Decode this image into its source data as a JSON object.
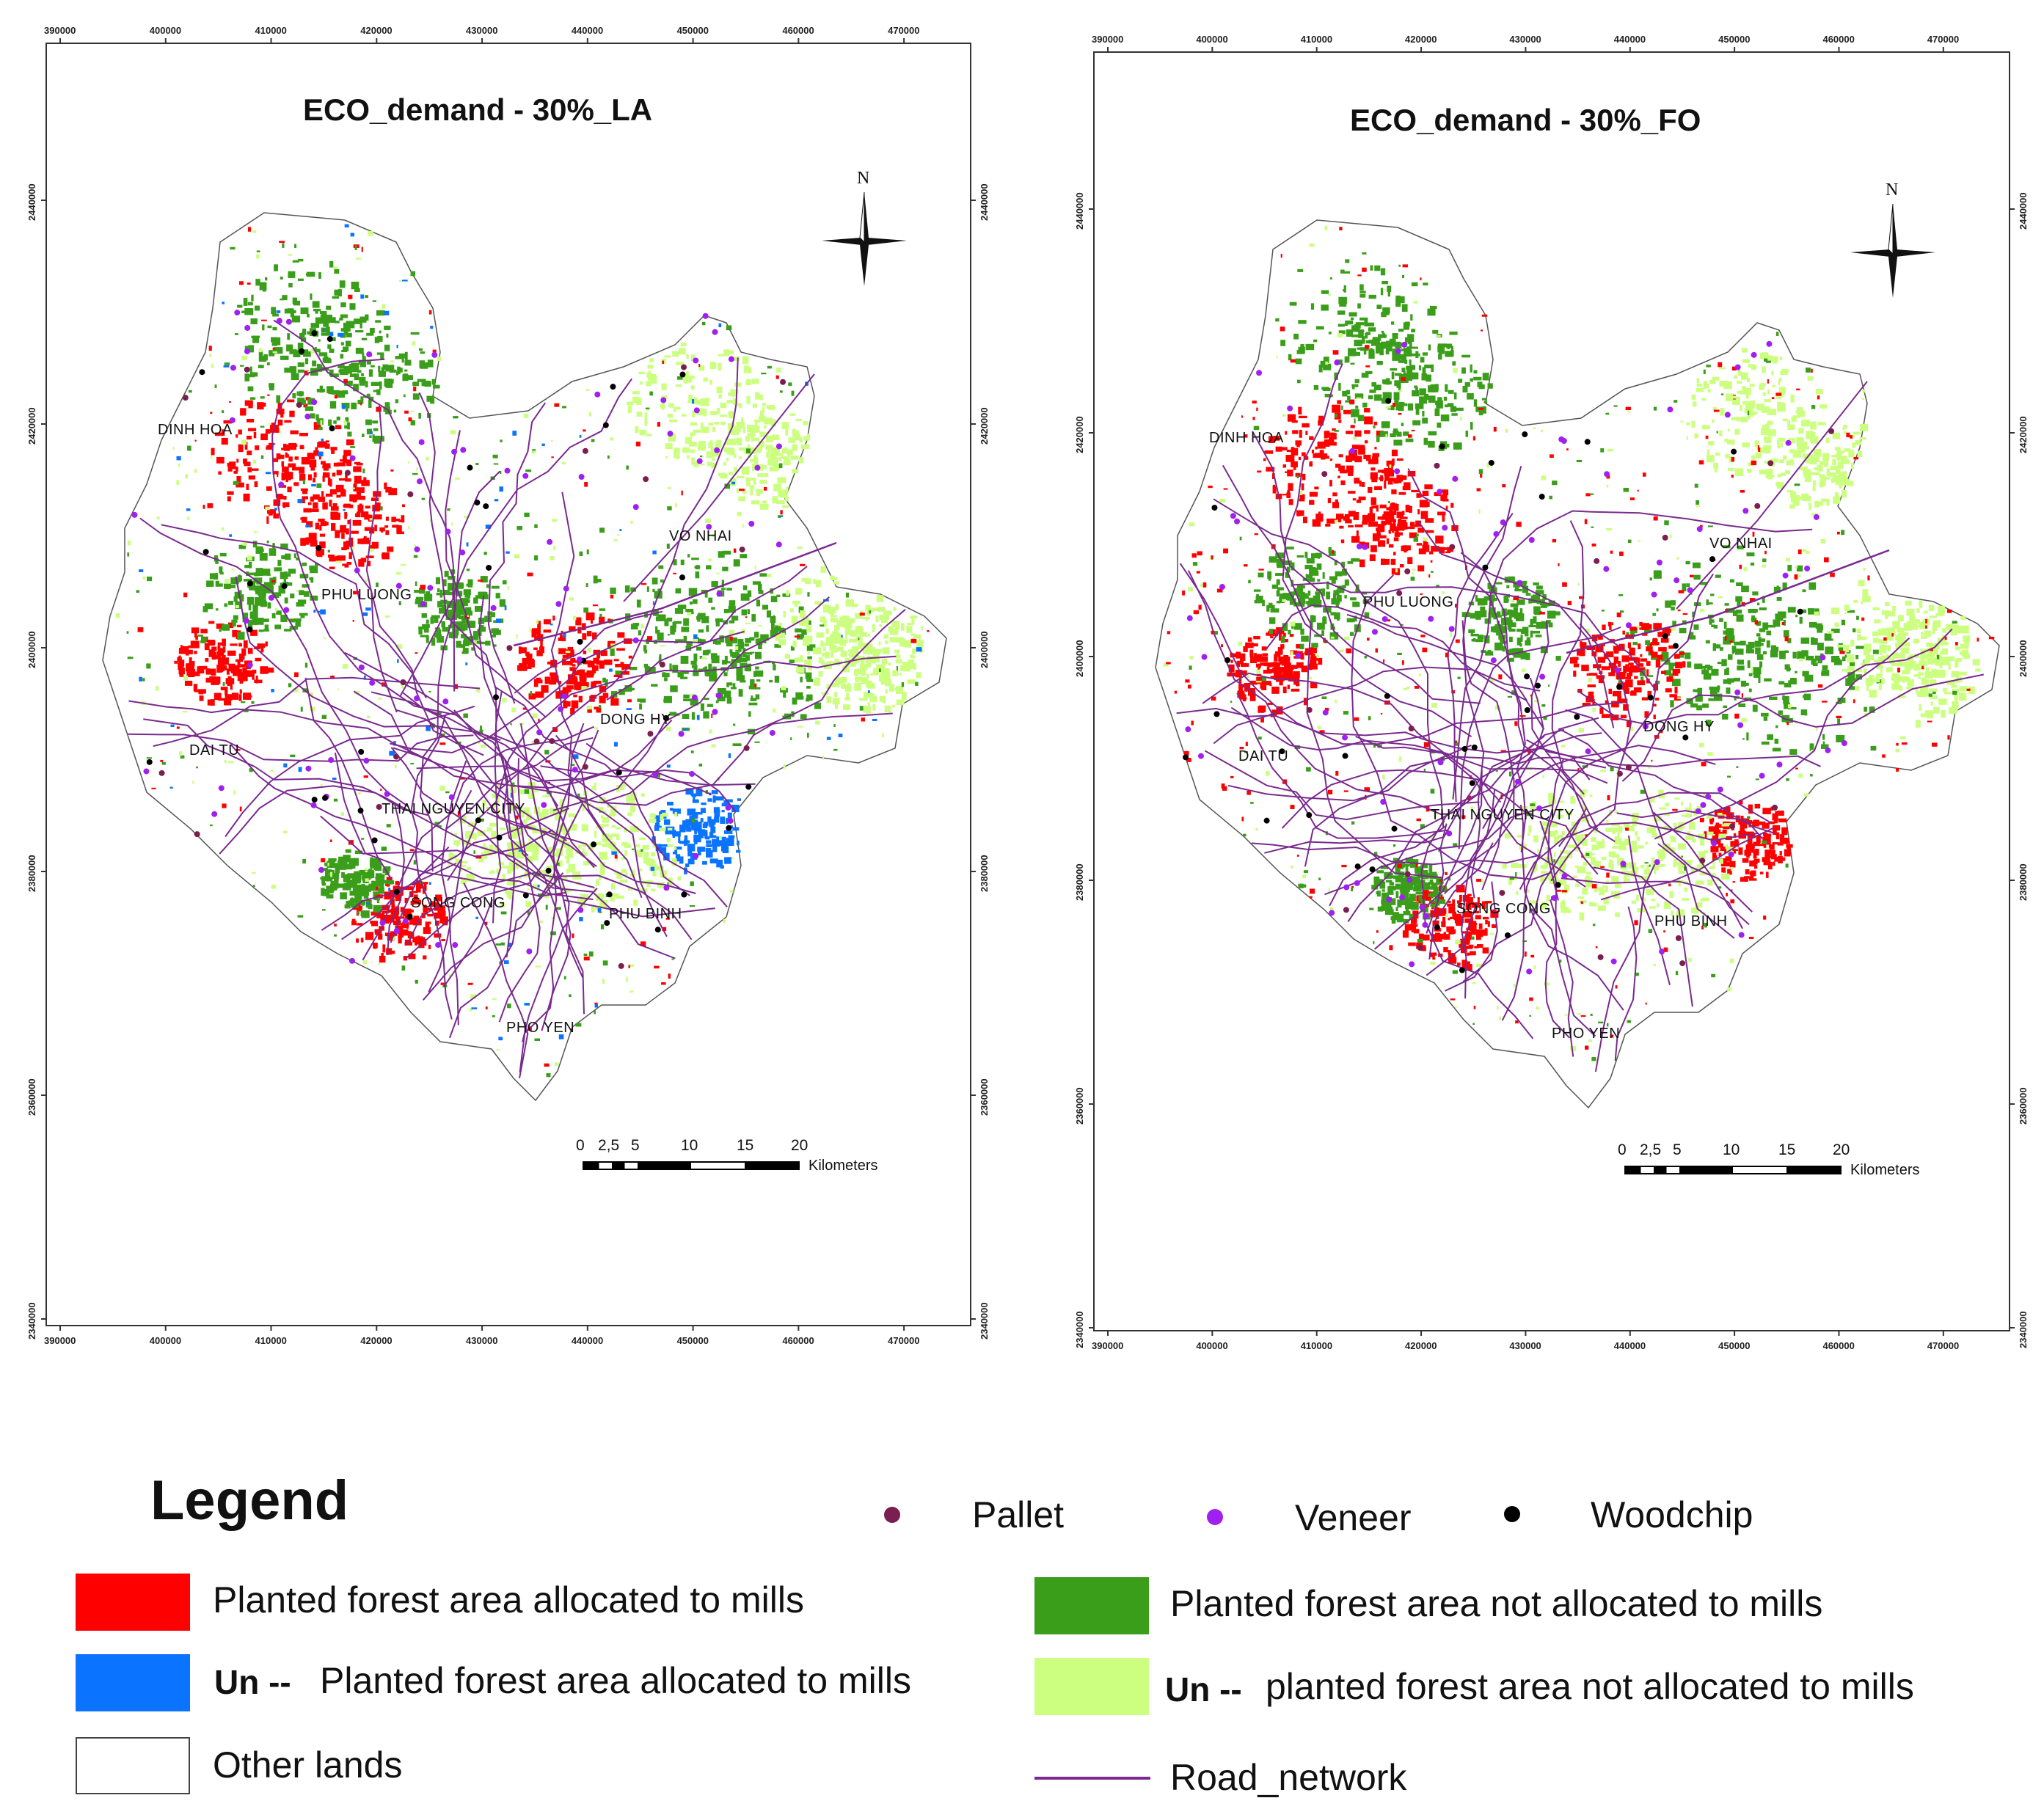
{
  "maps": [
    {
      "title": "ECO_demand - 30%_LA",
      "x_ticks": [
        "390000",
        "400000",
        "410000",
        "420000",
        "430000",
        "440000",
        "450000",
        "460000",
        "470000"
      ],
      "y_ticks": [
        "2440000",
        "2420000",
        "2400000",
        "2380000",
        "2360000",
        "2340000"
      ],
      "places": [
        "DINH HOA",
        "VO NHAI",
        "PHU LUONG",
        "DONG HY",
        "DAI TU",
        "THAI NGUYEN CITY",
        "SONG CONG",
        "PHU BINH",
        "PHO YEN"
      ],
      "north": "N",
      "scale_numbers": [
        "0",
        "2,5",
        "5",
        "10",
        "15",
        "20"
      ],
      "scale_unit": "Kilometers"
    },
    {
      "title": "ECO_demand - 30%_FO",
      "x_ticks": [
        "390000",
        "400000",
        "410000",
        "420000",
        "430000",
        "440000",
        "450000",
        "460000",
        "470000"
      ],
      "y_ticks": [
        "2440000",
        "2420000",
        "2400000",
        "2380000",
        "2360000",
        "2340000"
      ],
      "places": [
        "DINH HOA",
        "VO NHAI",
        "PHU LUONG",
        "DONG HY",
        "DAI TU",
        "THAI NGUYEN CITY",
        "SONG CONG",
        "PHU BINH",
        "PHO YEN"
      ],
      "north": "N",
      "scale_numbers": [
        "0",
        "2,5",
        "5",
        "10",
        "15",
        "20"
      ],
      "scale_unit": "Kilometers"
    }
  ],
  "legend": {
    "title": "Legend",
    "items": {
      "pallet": {
        "label": "Pallet",
        "color": "#7a1f4f"
      },
      "veneer": {
        "label": "Veneer",
        "color": "#a020f0"
      },
      "woodchip": {
        "label": "Woodchip",
        "color": "#000000"
      },
      "planted_allocated": {
        "label": "Planted forest area allocated to mills",
        "color": "#ff0000"
      },
      "planted_not_allocated": {
        "label": "Planted forest area not allocated to mills",
        "color": "#3a9e1a"
      },
      "un_planted_allocated": {
        "prefix": "Un --",
        "label": "Planted forest area allocated to mills",
        "color": "#0a73ff"
      },
      "un_planted_not_allocated": {
        "prefix": "Un --",
        "label": "planted forest area not allocated to mills",
        "color": "#ccff80"
      },
      "other_lands": {
        "label": "Other lands",
        "color": "#ffffff"
      },
      "road_network": {
        "label": "Road_network",
        "color": "#7a2a8e"
      }
    }
  }
}
